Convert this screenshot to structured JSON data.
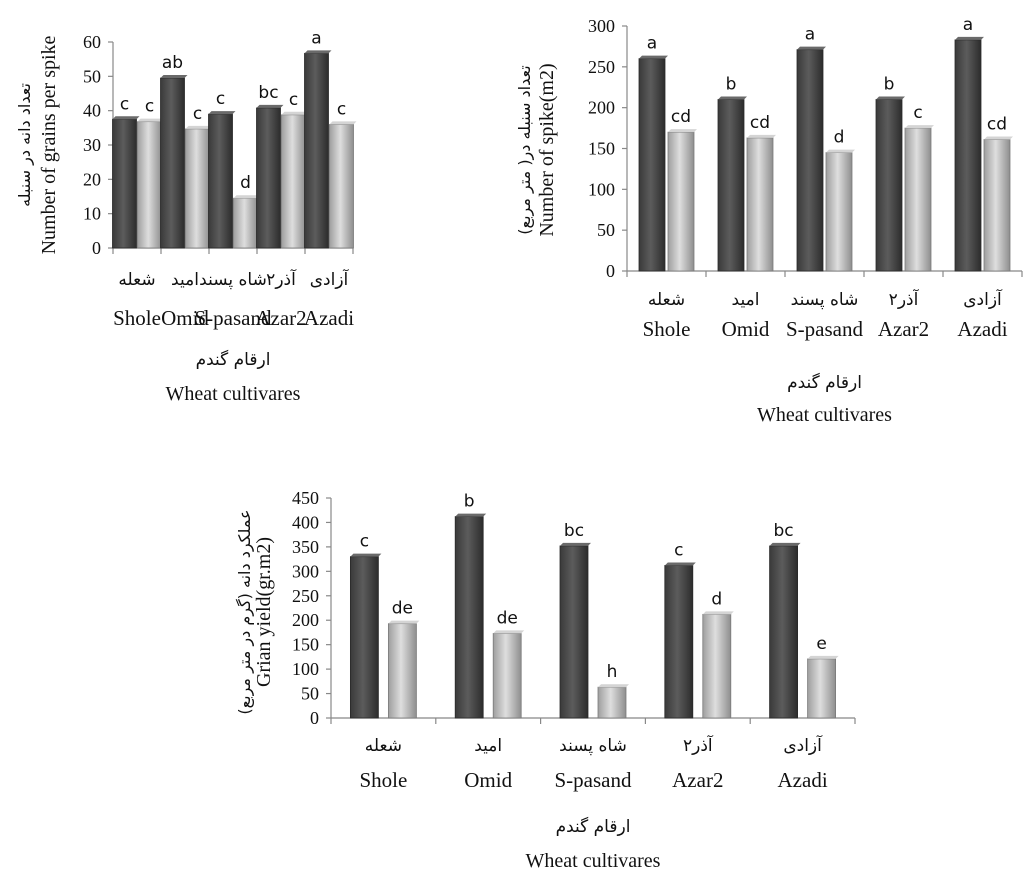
{
  "chart_data": [
    {
      "type": "bar",
      "categories": [
        "Shole",
        "Omid",
        "S-pasand",
        "Azar2",
        "Azadi"
      ],
      "categories_fa": [
        "شعله",
        "امید",
        "شاه پسند",
        "آذر۲",
        "آزادی"
      ],
      "series": [
        {
          "values": [
            37.5,
            49.5,
            39,
            40.8,
            56.7
          ],
          "color": "#4a4a4a"
        },
        {
          "values": [
            36.8,
            34.7,
            14.5,
            38.8,
            36
          ],
          "color": "#b8b8b8"
        }
      ],
      "letters": [
        [
          "c",
          "ab",
          "c",
          "bc",
          "a"
        ],
        [
          "c",
          "c",
          "d",
          "c",
          "c"
        ]
      ],
      "ylabel": "Number of grains per spike",
      "ylabel_fa": "تعداد دانه در سنبله",
      "xlabel": "Wheat cultivares",
      "xlabel_fa": "ارقام گندم",
      "ylim": [
        0,
        60
      ],
      "yticks": [
        0,
        10,
        20,
        30,
        40,
        50,
        60
      ]
    },
    {
      "type": "bar",
      "categories": [
        "Shole",
        "Omid",
        "S-pasand",
        "Azar2",
        "Azadi"
      ],
      "categories_fa": [
        "شعله",
        "امید",
        "شاه پسند",
        "آذر۲",
        "آزادی"
      ],
      "series": [
        {
          "values": [
            260,
            210,
            271,
            210,
            283
          ],
          "color": "#4a4a4a"
        },
        {
          "values": [
            170,
            163,
            145,
            175,
            161
          ],
          "color": "#b8b8b8"
        }
      ],
      "letters": [
        [
          "a",
          "b",
          "a",
          "b",
          "a"
        ],
        [
          "cd",
          "cd",
          "d",
          "c",
          "cd"
        ]
      ],
      "ylabel": "Number of spike(m2)",
      "ylabel_fa": "تعداد سنبله در( متر مربع)",
      "xlabel": "Wheat cultivares",
      "xlabel_fa": "ارقام گندم",
      "ylim": [
        0,
        300
      ],
      "yticks": [
        0,
        50,
        100,
        150,
        200,
        250,
        300
      ]
    },
    {
      "type": "bar",
      "categories": [
        "Shole",
        "Omid",
        "S-pasand",
        "Azar2",
        "Azadi"
      ],
      "categories_fa": [
        "شعله",
        "امید",
        "شاه پسند",
        "آذر۲",
        "آزادی"
      ],
      "series": [
        {
          "values": [
            330,
            412,
            352,
            312,
            352
          ],
          "color": "#4a4a4a"
        },
        {
          "values": [
            193,
            173,
            63,
            212,
            121
          ],
          "color": "#b8b8b8"
        }
      ],
      "letters": [
        [
          "c",
          "b",
          "bc",
          "c",
          "bc"
        ],
        [
          "de",
          "de",
          "h",
          "d",
          "e"
        ]
      ],
      "ylabel": "Grian yield(gr.m2)",
      "ylabel_fa": "عملکرد دانه (گرم در متر مربع)",
      "xlabel": "Wheat cultivares",
      "xlabel_fa": "ارقام گندم",
      "ylim": [
        0,
        450
      ],
      "yticks": [
        0,
        50,
        100,
        150,
        200,
        250,
        300,
        350,
        400,
        450
      ]
    }
  ]
}
